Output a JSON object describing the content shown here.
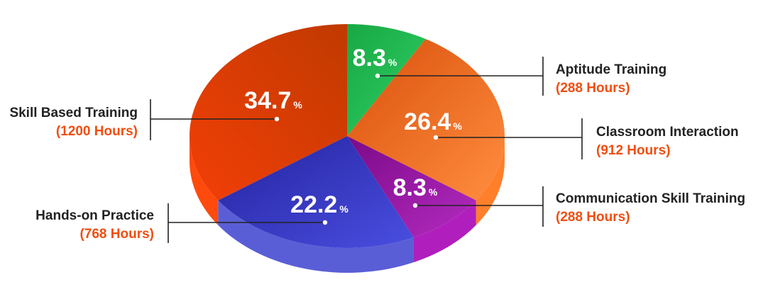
{
  "chart_data": {
    "type": "pie",
    "series": [
      {
        "name": "Aptitude Training",
        "hours": "(288 Hours)",
        "value": 8.3,
        "percent_text": "8.3",
        "percent_sign": "%",
        "color_top_light": "#2fcf64",
        "color_top_dark": "#18a844",
        "color_side": "#12913a"
      },
      {
        "name": "Classroom Interaction",
        "hours": "(912 Hours)",
        "value": 26.4,
        "percent_text": "26.4",
        "percent_sign": "%",
        "color_top_light": "#ff8d3f",
        "color_top_dark": "#d9500c",
        "color_side": "#ff7f2a"
      },
      {
        "name": "Communication Skill Training",
        "hours": "(288 Hours)",
        "value": 8.3,
        "percent_text": "8.3",
        "percent_sign": "%",
        "color_top_light": "#b42bc0",
        "color_top_dark": "#7c0a88",
        "color_side": "#b01fbd"
      },
      {
        "name": "Hands-on Practice",
        "hours": "(768 Hours)",
        "value": 22.2,
        "percent_text": "22.2",
        "percent_sign": "%",
        "color_top_light": "#4a4ee0",
        "color_top_dark": "#23239e",
        "color_side": "#5a5ed6"
      },
      {
        "name": "Skill Based Training",
        "hours": "(1200 Hours)",
        "value": 34.7,
        "percent_text": "34.7",
        "percent_sign": "%",
        "color_top_light": "#f23f07",
        "color_top_dark": "#c03a00",
        "color_side": "#ff4a0d"
      }
    ],
    "unit": "%",
    "legend_placement": "callouts around pie"
  }
}
